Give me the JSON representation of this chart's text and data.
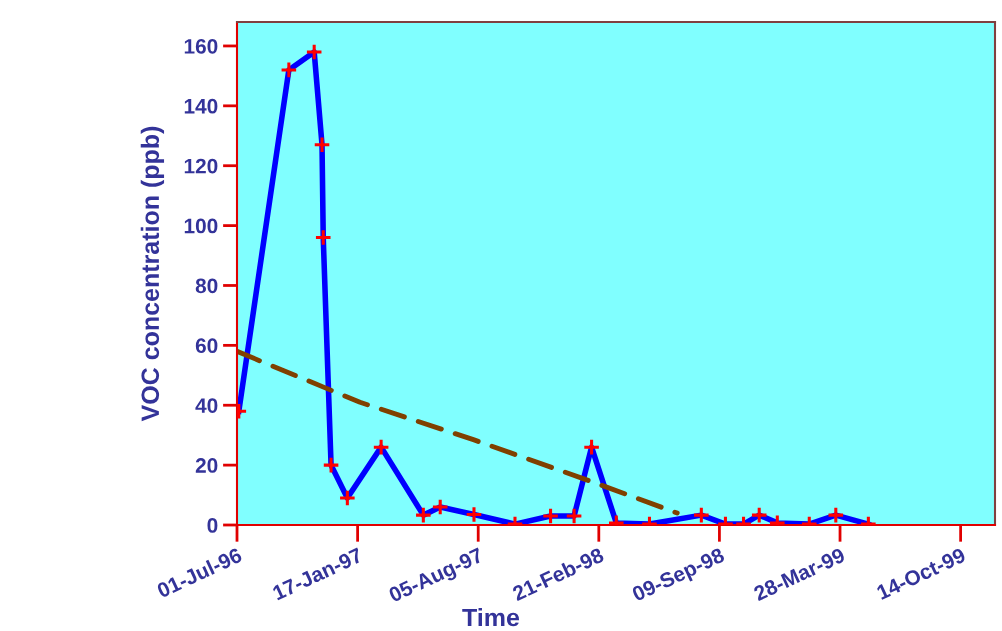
{
  "chart_data": {
    "type": "line",
    "xlabel": "Time",
    "ylabel": "VOC concentration (ppb)",
    "series": [
      {
        "color": "#0000ff",
        "marker": "none",
        "line_style": "solid",
        "x": [
          "1996-07-04",
          "1996-09-25",
          "1996-11-06",
          "1996-11-19",
          "1996-11-21",
          "1996-12-04",
          "1996-12-31",
          "1997-02-25",
          "1997-05-06",
          "1997-06-03",
          "1997-07-29",
          "1997-10-05",
          "1997-12-03",
          "1998-01-11",
          "1998-02-09",
          "1998-03-22",
          "1998-05-16",
          "1998-08-10",
          "1998-09-19",
          "1998-10-19",
          "1998-11-14",
          "1998-12-14",
          "1999-02-05",
          "1999-03-21",
          "1999-05-14"
        ],
        "values": [
          38,
          152,
          158,
          127,
          96,
          20,
          9,
          26,
          3.3,
          6,
          3.5,
          0.3,
          3,
          3,
          26,
          0.7,
          0.3,
          3.3,
          0.3,
          0.3,
          3.3,
          0.7,
          0.3,
          3.3,
          0.3
        ]
      },
      {
        "type": "scatter",
        "color": "#ff0000",
        "marker": "cross",
        "x": [
          "1996-07-04",
          "1996-09-25",
          "1996-11-06",
          "1996-11-19",
          "1996-11-21",
          "1996-12-04",
          "1996-12-31",
          "1997-02-25",
          "1997-05-06",
          "1997-06-03",
          "1997-07-29",
          "1997-10-05",
          "1997-12-03",
          "1998-01-11",
          "1998-02-09",
          "1998-03-22",
          "1998-05-16",
          "1998-08-10",
          "1998-09-19",
          "1998-10-19",
          "1998-11-14",
          "1998-12-14",
          "1999-02-05",
          "1999-03-21",
          "1999-05-14"
        ],
        "values": [
          38,
          152,
          158,
          127,
          96,
          20,
          9,
          26,
          3.3,
          6,
          3.5,
          0.3,
          3,
          3,
          26,
          0.7,
          0.3,
          3.3,
          0.3,
          0.3,
          3.3,
          0.7,
          0.3,
          3.3,
          0.3
        ]
      },
      {
        "type": "line",
        "color": "#804000",
        "marker": "none",
        "line_style": "dashed",
        "x": [
          "1996-07-01",
          "1997-01-21",
          "1997-07-28",
          "1998-02-02",
          "1998-07-01"
        ],
        "values": [
          58,
          41,
          28.5,
          15,
          4
        ]
      }
    ],
    "xlim": [
      "1996-07-01",
      "1999-12-10"
    ],
    "xticks": [
      {
        "value": "1996-07-01",
        "label": "01-Jul-96"
      },
      {
        "value": "1997-01-17",
        "label": "17-Jan-97"
      },
      {
        "value": "1997-08-05",
        "label": "05-Aug-97"
      },
      {
        "value": "1998-02-21",
        "label": "21-Feb-98"
      },
      {
        "value": "1998-09-09",
        "label": "09-Sep-98"
      },
      {
        "value": "1999-03-28",
        "label": "28-Mar-99"
      },
      {
        "value": "1999-10-14",
        "label": "14-Oct-99"
      }
    ],
    "ylim": [
      0,
      168
    ],
    "yticks": [
      0,
      20,
      40,
      60,
      80,
      100,
      120,
      140,
      160
    ],
    "grid": false,
    "legend": false
  }
}
